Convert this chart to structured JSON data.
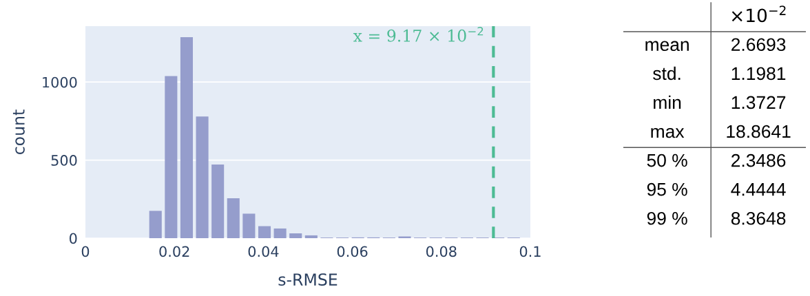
{
  "chart_data": [
    {
      "type": "histogram",
      "xlabel": "s-RMSE",
      "ylabel": "count",
      "color": "#959dcc",
      "bins": [
        0.014,
        0.0175,
        0.021,
        0.0245,
        0.028,
        0.0315,
        0.035,
        0.0385,
        0.042,
        0.0455,
        0.049,
        0.0525,
        0.056,
        0.0595,
        0.063,
        0.0665,
        0.07,
        0.0735,
        0.077,
        0.0805,
        0.084,
        0.0875,
        0.091,
        0.0945,
        0.098
      ],
      "values": [
        175,
        1038,
        1287,
        779,
        472,
        256,
        157,
        77,
        62,
        31,
        18,
        4,
        4,
        5,
        5,
        4,
        11,
        4,
        4,
        4,
        4,
        4,
        4,
        4
      ],
      "xlim": [
        0,
        0.1
      ],
      "xticks": [
        0,
        0.02,
        0.04,
        0.06,
        0.08,
        0.1
      ],
      "ylim": [
        0,
        1358
      ],
      "yticks": [
        0,
        500,
        1000
      ],
      "grid": "y",
      "ref_lines": [
        {
          "axis": "x",
          "value": 0.0917,
          "label": "x = 9.17 × 10$^{−2}$",
          "color": "#4dbb94",
          "line_style": "dashed"
        }
      ]
    },
    {
      "type": "other",
      "title": "×10$^{−2}$",
      "categories": [
        "mean",
        "std.",
        "min",
        "max",
        "50 %",
        "95 %",
        "99 %"
      ],
      "value_labels": [
        "2.6693",
        "1.1981",
        "1.3727",
        "18.8641",
        "2.3486",
        "4.4444",
        "8.3648"
      ]
    }
  ]
}
